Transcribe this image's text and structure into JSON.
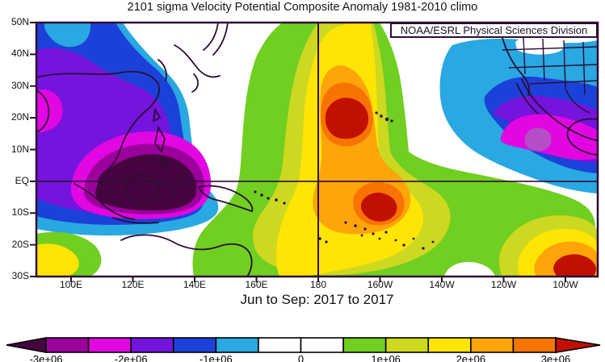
{
  "title": "2101 sigma Velocity Potential Composite Anomaly 1981-2010 climo",
  "credit": "NOAA/ESRL Physical Sciences Division",
  "subtitle": "Jun to Sep: 2017 to 2017",
  "map": {
    "lat_labels": [
      "50N",
      "40N",
      "30N",
      "20N",
      "10N",
      "EQ",
      "10S",
      "20S",
      "30S"
    ],
    "lon_labels": [
      "100E",
      "120E",
      "140E",
      "160E",
      "180",
      "160W",
      "140W",
      "120W",
      "100W"
    ],
    "reference_lines": {
      "vertical_at": "180",
      "horizontal_at": "EQ"
    }
  },
  "colorbar": {
    "labels": [
      "-3e+06",
      "-2e+06",
      "-1e+06",
      "0",
      "1e+06",
      "2e+06",
      "3e+06"
    ],
    "segment_colors": [
      "#9c009c",
      "#e206e2",
      "#7514dd",
      "#1c41d9",
      "#29a8e2",
      "#ffffff",
      "#ffffff",
      "#70cf20",
      "#cdd821",
      "#ffe504",
      "#ffa50a",
      "#f87402"
    ],
    "left_arrow_color": "#45043f",
    "right_arrow_color": "#c21000",
    "outline_color": "#000000"
  },
  "colors": {
    "dark_negative": "#45043f",
    "purple": "#9c009c",
    "magenta": "#e206e2",
    "violet": "#7514dd",
    "blue": "#1c41d9",
    "cyan": "#29a8e2",
    "white": "#ffffff",
    "green": "#70cf20",
    "yellow_green": "#cdd821",
    "yellow": "#ffe504",
    "orange": "#ffa50a",
    "dark_orange": "#f87402",
    "red": "#c21000",
    "inner_magenta_core": "#b54ec6",
    "coastline": "#2e0c34",
    "frame": "#2e0c34",
    "text": "#111111"
  },
  "chart_data": {
    "type": "heatmap",
    "title": "2101 sigma Velocity Potential Composite Anomaly 1981-2010 climo",
    "subtitle": "Jun to Sep: 2017 to 2017",
    "credit": "NOAA/ESRL Physical Sciences Division",
    "x_tick_labels": [
      "100E",
      "120E",
      "140E",
      "160E",
      "180",
      "160W",
      "140W",
      "120W",
      "100W"
    ],
    "y_tick_labels": [
      "50N",
      "40N",
      "30N",
      "20N",
      "10N",
      "EQ",
      "10S",
      "20S",
      "30S"
    ],
    "contour_levels": [
      -3000000,
      -2500000,
      -2000000,
      -1500000,
      -1000000,
      -500000,
      0,
      500000,
      1000000,
      1500000,
      2000000,
      2500000,
      3000000
    ],
    "colorbar_tick_labels": [
      "-3e+06",
      "-2e+06",
      "-1e+06",
      "0",
      "1e+06",
      "2e+06",
      "3e+06"
    ],
    "legend_position": "bottom",
    "grid": false,
    "anomaly_centers": [
      {
        "lon": "125E",
        "lat": "2S",
        "value": "below -3e+06",
        "note": "strong negative center over Maritime Continent / Indonesia"
      },
      {
        "lon": "168W",
        "lat": "18N",
        "value": "above +3e+06",
        "note": "strong positive center north-central Pacific near Hawaii"
      },
      {
        "lon": "158W",
        "lat": "8S",
        "value": "above +3e+06",
        "note": "positive center south-central Pacific"
      },
      {
        "lon": "100W",
        "lat": "27S",
        "value": "above +3e+06",
        "note": "positive center southeast Pacific at map edge"
      },
      {
        "lon": "105W",
        "lat": "15N",
        "value": "about -2.5e+06",
        "note": "negative center eastern Pacific near Mexico"
      },
      {
        "lon": "100E",
        "lat": "27S",
        "value": "about +2e+06",
        "note": "positive patch southwest corner"
      }
    ]
  }
}
